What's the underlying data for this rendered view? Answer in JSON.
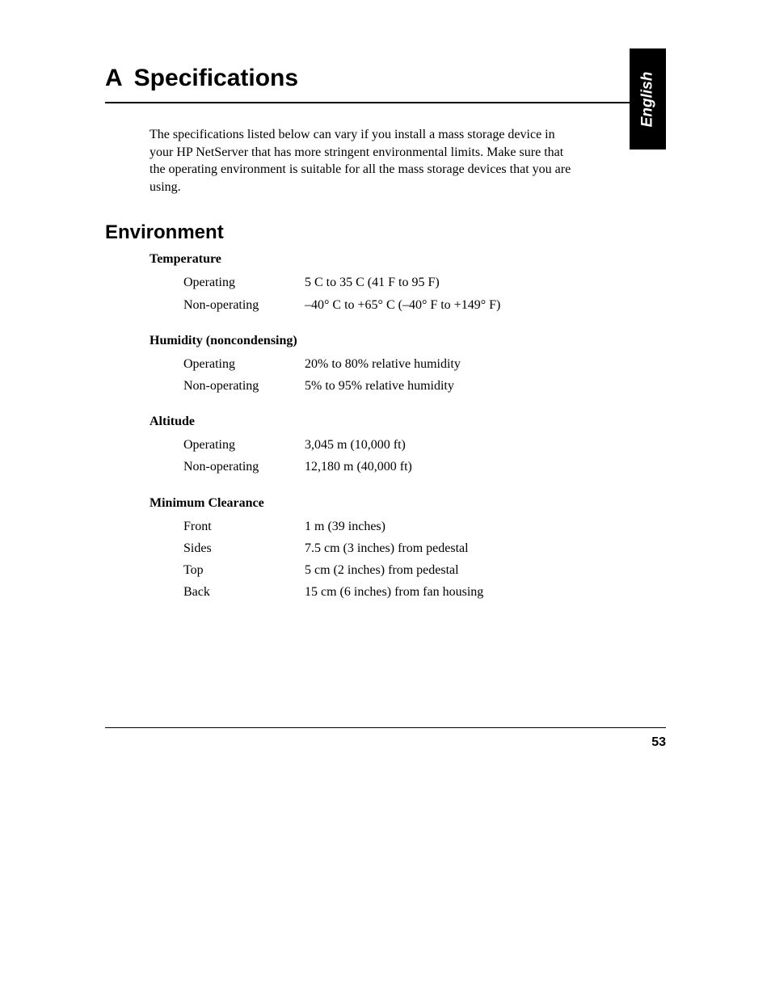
{
  "lang_tab": "English",
  "appendix_letter": "A",
  "appendix_title": "Specifications",
  "intro": "The specifications listed below can vary if you install a mass storage device in your HP NetServer that has more stringent environmental limits. Make sure that the operating environment is suitable for all the mass storage devices that you are using.",
  "section_title": "Environment",
  "groups": [
    {
      "title": "Temperature",
      "rows": [
        {
          "label": "Operating",
          "value": "5  C to 35  C (41  F to 95  F)"
        },
        {
          "label": "Non-operating",
          "value": "–40° C to +65° C (–40° F to +149° F)"
        }
      ]
    },
    {
      "title": "Humidity (noncondensing)",
      "rows": [
        {
          "label": "Operating",
          "value": "20% to 80% relative humidity"
        },
        {
          "label": "Non-operating",
          "value": "5% to 95% relative humidity"
        }
      ]
    },
    {
      "title": "Altitude",
      "rows": [
        {
          "label": "Operating",
          "value": "3,045 m (10,000 ft)"
        },
        {
          "label": "Non-operating",
          "value": "12,180 m (40,000 ft)"
        }
      ]
    },
    {
      "title": "Minimum Clearance",
      "rows": [
        {
          "label": "Front",
          "value": "1 m (39 inches)"
        },
        {
          "label": "Sides",
          "value": "7.5 cm (3 inches) from pedestal"
        },
        {
          "label": "Top",
          "value": "5 cm (2 inches) from pedestal"
        },
        {
          "label": "Back",
          "value": "15 cm (6 inches) from fan housing"
        }
      ]
    }
  ],
  "page_number": "53"
}
